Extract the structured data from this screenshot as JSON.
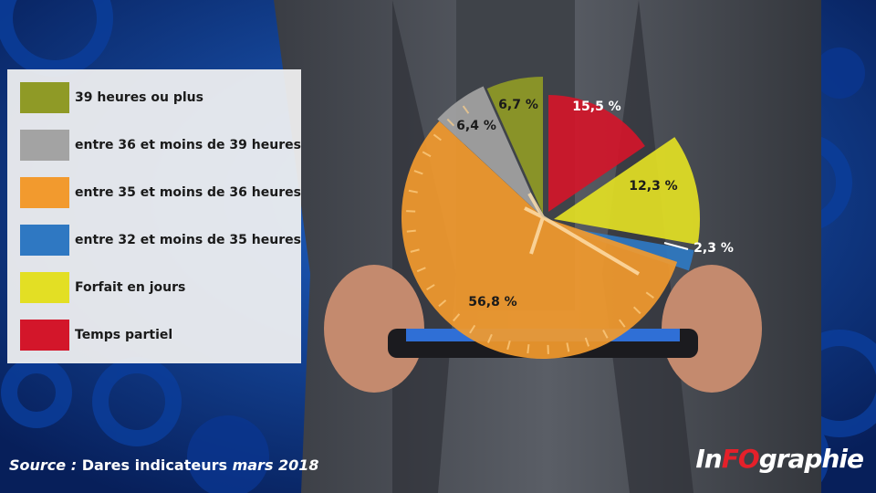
{
  "chart_data": {
    "type": "pie",
    "categories": [
      "Temps partiel",
      "Forfait en jours",
      "entre 32 et moins de 35 heures",
      "entre 35 et moins de 36 heures",
      "entre 36 et moins de 39 heures",
      "39 heures ou plus"
    ],
    "values": [
      15.5,
      12.3,
      2.3,
      56.8,
      6.4,
      6.7
    ],
    "value_labels": [
      "15,5 %",
      "12,3 %",
      "2,3 %",
      "56,8 %",
      "6,4 %",
      "6,7 %"
    ],
    "colors": [
      "#d3162a",
      "#e3df24",
      "#2f78c2",
      "#f29a2e",
      "#a3a3a3",
      "#8f9a26"
    ],
    "title": "",
    "legend_placement": "left"
  },
  "legend": {
    "items": [
      {
        "label": "39 heures ou plus",
        "color": "#8f9a26"
      },
      {
        "label": "entre 36 et moins de 39 heures",
        "color": "#a3a3a3"
      },
      {
        "label": "entre 35 et moins de 36 heures",
        "color": "#f29a2e"
      },
      {
        "label": "entre 32 et moins de 35 heures",
        "color": "#2f78c2"
      },
      {
        "label": "Forfait en jours",
        "color": "#e3df24"
      },
      {
        "label": "Temps partiel",
        "color": "#d3162a"
      }
    ]
  },
  "footer": {
    "source_prefix": "Source :",
    "source_text": "Dares indicateurs",
    "source_date": "mars 2018",
    "logo_a": "In",
    "logo_b": "FO",
    "logo_c": "graphie"
  }
}
